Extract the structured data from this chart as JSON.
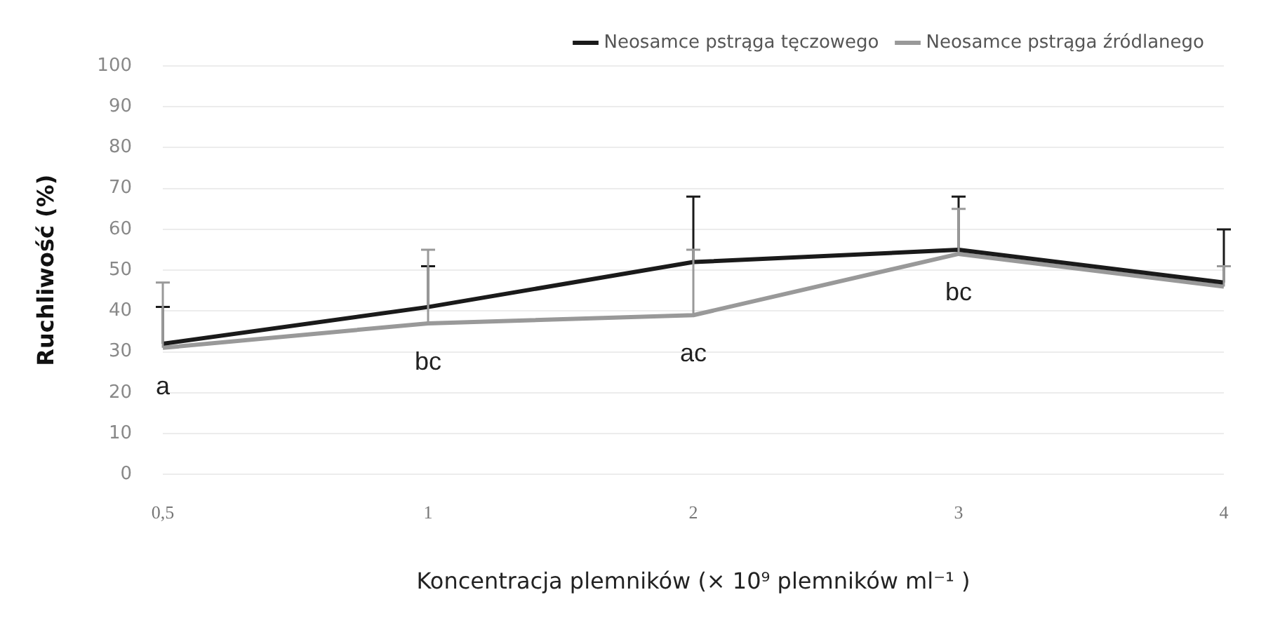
{
  "chart_data": {
    "type": "line",
    "xlabel": "Koncentracja plemników (× 10⁹ plemników ml⁻¹ )",
    "ylabel": "Ruchliwość (%)",
    "categories": [
      "0,5",
      "1",
      "2",
      "3",
      "4"
    ],
    "series": [
      {
        "name": "Neosamce pstrąga tęczowego",
        "color": "#1a1a1a",
        "values": [
          32,
          41,
          52,
          55,
          47
        ],
        "errors": [
          [
            32,
            41
          ],
          [
            41,
            51
          ],
          [
            52,
            68
          ],
          [
            55,
            68
          ],
          [
            47,
            60
          ]
        ]
      },
      {
        "name": "Neosamce pstrąga źródlanego",
        "color": "#999999",
        "values": [
          31,
          37,
          39,
          54,
          46
        ],
        "errors": [
          [
            31,
            47
          ],
          [
            37,
            55
          ],
          [
            39,
            55
          ],
          [
            54,
            65
          ],
          [
            46,
            51
          ]
        ]
      }
    ],
    "annotations": [
      {
        "text": "a",
        "x": "0,5",
        "y": 31
      },
      {
        "text": "bc",
        "x": "1",
        "y": 37
      },
      {
        "text": "ac",
        "x": "2",
        "y": 39
      },
      {
        "text": "bc",
        "x": "3",
        "y": 54
      }
    ],
    "ylim": [
      0,
      100
    ],
    "yticks": [
      0,
      10,
      20,
      30,
      40,
      50,
      60,
      70,
      80,
      90,
      100
    ],
    "grid": "y",
    "legend": "top right",
    "marker": "none",
    "line_style": "solid"
  }
}
